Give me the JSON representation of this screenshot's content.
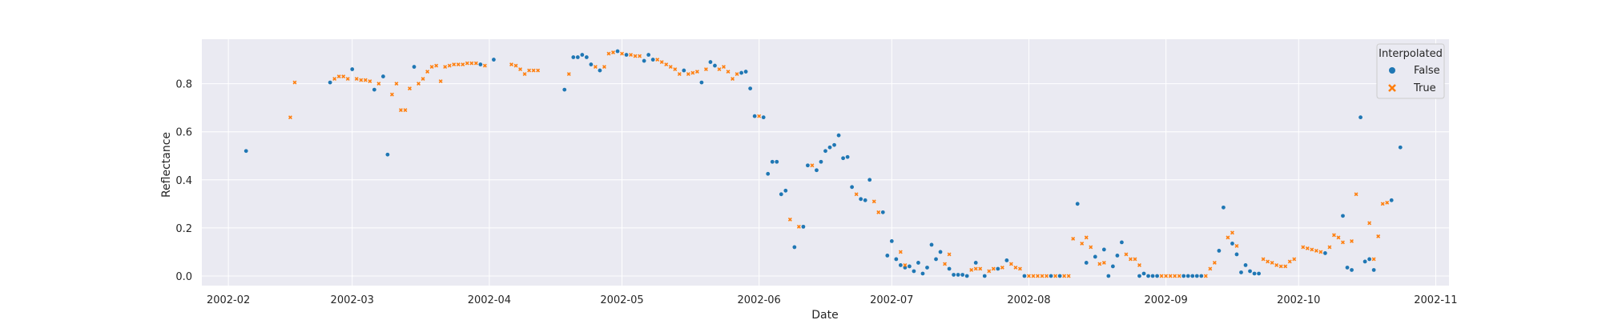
{
  "chart_data": {
    "type": "scatter",
    "title": "",
    "xlabel": "Date",
    "ylabel": "Reflectance",
    "xlim": [
      -6,
      276
    ],
    "ylim": [
      -0.04,
      0.985
    ],
    "x_ticks": [
      {
        "day": 0,
        "label": "2002-02"
      },
      {
        "day": 28,
        "label": "2002-03"
      },
      {
        "day": 59,
        "label": "2002-04"
      },
      {
        "day": 89,
        "label": "2002-05"
      },
      {
        "day": 120,
        "label": "2002-06"
      },
      {
        "day": 150,
        "label": "2002-07"
      },
      {
        "day": 181,
        "label": "2002-08"
      },
      {
        "day": 212,
        "label": "2002-09"
      },
      {
        "day": 242,
        "label": "2002-10"
      },
      {
        "day": 273,
        "label": "2002-11"
      }
    ],
    "y_ticks": [
      {
        "value": 0.0,
        "label": "0.0"
      },
      {
        "value": 0.2,
        "label": "0.2"
      },
      {
        "value": 0.4,
        "label": "0.4"
      },
      {
        "value": 0.6,
        "label": "0.6"
      },
      {
        "value": 0.8,
        "label": "0.8"
      }
    ],
    "legend": {
      "title": "Interpolated",
      "position": "upper-right",
      "entries": [
        {
          "label": "False",
          "marker": "circle",
          "color": "#1f77b4"
        },
        {
          "label": "True",
          "marker": "x",
          "color": "#ff7f0e"
        }
      ]
    },
    "x_unit": "days since 2002-02-01",
    "series": [
      {
        "name": "False",
        "color": "#1f77b4",
        "marker": "circle",
        "points": [
          [
            4,
            0.52
          ],
          [
            23,
            0.805
          ],
          [
            28,
            0.86
          ],
          [
            33,
            0.775
          ],
          [
            35,
            0.83
          ],
          [
            36,
            0.505
          ],
          [
            42,
            0.87
          ],
          [
            57,
            0.88
          ],
          [
            60,
            0.9
          ],
          [
            76,
            0.775
          ],
          [
            78,
            0.91
          ],
          [
            79,
            0.91
          ],
          [
            80,
            0.92
          ],
          [
            81,
            0.91
          ],
          [
            82,
            0.88
          ],
          [
            84,
            0.855
          ],
          [
            88,
            0.935
          ],
          [
            90,
            0.92
          ],
          [
            94,
            0.895
          ],
          [
            95,
            0.92
          ],
          [
            96,
            0.9
          ],
          [
            103,
            0.855
          ],
          [
            107,
            0.805
          ],
          [
            109,
            0.89
          ],
          [
            110,
            0.875
          ],
          [
            116,
            0.845
          ],
          [
            117,
            0.85
          ],
          [
            118,
            0.78
          ],
          [
            119,
            0.665
          ],
          [
            121,
            0.66
          ],
          [
            122,
            0.425
          ],
          [
            123,
            0.475
          ],
          [
            124,
            0.475
          ],
          [
            125,
            0.34
          ],
          [
            126,
            0.355
          ],
          [
            128,
            0.12
          ],
          [
            130,
            0.205
          ],
          [
            131,
            0.46
          ],
          [
            133,
            0.44
          ],
          [
            134,
            0.475
          ],
          [
            135,
            0.52
          ],
          [
            136,
            0.535
          ],
          [
            137,
            0.545
          ],
          [
            138,
            0.585
          ],
          [
            139,
            0.49
          ],
          [
            140,
            0.495
          ],
          [
            141,
            0.37
          ],
          [
            143,
            0.32
          ],
          [
            144,
            0.315
          ],
          [
            145,
            0.4
          ],
          [
            148,
            0.265
          ],
          [
            149,
            0.085
          ],
          [
            150,
            0.145
          ],
          [
            151,
            0.07
          ],
          [
            152,
            0.045
          ],
          [
            153,
            0.035
          ],
          [
            154,
            0.04
          ],
          [
            155,
            0.02
          ],
          [
            156,
            0.055
          ],
          [
            157,
            0.01
          ],
          [
            158,
            0.035
          ],
          [
            159,
            0.13
          ],
          [
            160,
            0.07
          ],
          [
            161,
            0.1
          ],
          [
            163,
            0.03
          ],
          [
            164,
            0.005
          ],
          [
            165,
            0.005
          ],
          [
            166,
            0.005
          ],
          [
            167,
            0.0
          ],
          [
            169,
            0.055
          ],
          [
            171,
            0.0
          ],
          [
            174,
            0.03
          ],
          [
            176,
            0.065
          ],
          [
            180,
            0.0
          ],
          [
            186,
            0.0
          ],
          [
            188,
            0.0
          ],
          [
            192,
            0.3
          ],
          [
            194,
            0.055
          ],
          [
            196,
            0.08
          ],
          [
            198,
            0.11
          ],
          [
            199,
            0.0
          ],
          [
            200,
            0.04
          ],
          [
            201,
            0.085
          ],
          [
            202,
            0.14
          ],
          [
            206,
            0.0
          ],
          [
            207,
            0.01
          ],
          [
            208,
            0.0
          ],
          [
            209,
            0.0
          ],
          [
            210,
            0.0
          ],
          [
            216,
            0.0
          ],
          [
            217,
            0.0
          ],
          [
            218,
            0.0
          ],
          [
            219,
            0.0
          ],
          [
            220,
            0.0
          ],
          [
            224,
            0.105
          ],
          [
            225,
            0.285
          ],
          [
            227,
            0.135
          ],
          [
            228,
            0.09
          ],
          [
            229,
            0.015
          ],
          [
            230,
            0.045
          ],
          [
            231,
            0.02
          ],
          [
            232,
            0.01
          ],
          [
            233,
            0.01
          ],
          [
            248,
            0.095
          ],
          [
            252,
            0.25
          ],
          [
            253,
            0.035
          ],
          [
            254,
            0.025
          ],
          [
            256,
            0.66
          ],
          [
            257,
            0.06
          ],
          [
            258,
            0.07
          ],
          [
            259,
            0.025
          ],
          [
            263,
            0.315
          ],
          [
            265,
            0.535
          ]
        ]
      },
      {
        "name": "True",
        "color": "#ff7f0e",
        "marker": "x",
        "points": [
          [
            14,
            0.66
          ],
          [
            15,
            0.805
          ],
          [
            24,
            0.82
          ],
          [
            25,
            0.83
          ],
          [
            26,
            0.83
          ],
          [
            27,
            0.82
          ],
          [
            29,
            0.82
          ],
          [
            30,
            0.815
          ],
          [
            31,
            0.815
          ],
          [
            32,
            0.81
          ],
          [
            34,
            0.8
          ],
          [
            37,
            0.755
          ],
          [
            38,
            0.8
          ],
          [
            39,
            0.69
          ],
          [
            40,
            0.69
          ],
          [
            41,
            0.78
          ],
          [
            43,
            0.8
          ],
          [
            44,
            0.82
          ],
          [
            45,
            0.85
          ],
          [
            46,
            0.87
          ],
          [
            47,
            0.875
          ],
          [
            48,
            0.81
          ],
          [
            49,
            0.87
          ],
          [
            50,
            0.875
          ],
          [
            51,
            0.88
          ],
          [
            52,
            0.88
          ],
          [
            53,
            0.88
          ],
          [
            54,
            0.885
          ],
          [
            55,
            0.885
          ],
          [
            56,
            0.885
          ],
          [
            58,
            0.875
          ],
          [
            64,
            0.88
          ],
          [
            65,
            0.875
          ],
          [
            66,
            0.86
          ],
          [
            67,
            0.84
          ],
          [
            68,
            0.855
          ],
          [
            69,
            0.855
          ],
          [
            70,
            0.855
          ],
          [
            77,
            0.84
          ],
          [
            83,
            0.87
          ],
          [
            85,
            0.87
          ],
          [
            86,
            0.925
          ],
          [
            87,
            0.93
          ],
          [
            89,
            0.925
          ],
          [
            91,
            0.92
          ],
          [
            92,
            0.915
          ],
          [
            93,
            0.915
          ],
          [
            97,
            0.9
          ],
          [
            98,
            0.89
          ],
          [
            99,
            0.88
          ],
          [
            100,
            0.87
          ],
          [
            101,
            0.86
          ],
          [
            102,
            0.84
          ],
          [
            104,
            0.84
          ],
          [
            105,
            0.845
          ],
          [
            106,
            0.85
          ],
          [
            108,
            0.86
          ],
          [
            111,
            0.86
          ],
          [
            112,
            0.87
          ],
          [
            113,
            0.85
          ],
          [
            114,
            0.82
          ],
          [
            115,
            0.84
          ],
          [
            120,
            0.665
          ],
          [
            127,
            0.235
          ],
          [
            129,
            0.205
          ],
          [
            132,
            0.46
          ],
          [
            142,
            0.34
          ],
          [
            146,
            0.31
          ],
          [
            147,
            0.265
          ],
          [
            152,
            0.1
          ],
          [
            153,
            0.045
          ],
          [
            162,
            0.05
          ],
          [
            163,
            0.09
          ],
          [
            168,
            0.025
          ],
          [
            169,
            0.03
          ],
          [
            170,
            0.03
          ],
          [
            172,
            0.02
          ],
          [
            173,
            0.03
          ],
          [
            175,
            0.035
          ],
          [
            177,
            0.05
          ],
          [
            178,
            0.035
          ],
          [
            179,
            0.03
          ],
          [
            181,
            0.0
          ],
          [
            182,
            0.0
          ],
          [
            183,
            0.0
          ],
          [
            184,
            0.0
          ],
          [
            185,
            0.0
          ],
          [
            187,
            0.0
          ],
          [
            189,
            0.0
          ],
          [
            190,
            0.0
          ],
          [
            191,
            0.155
          ],
          [
            193,
            0.135
          ],
          [
            194,
            0.16
          ],
          [
            195,
            0.12
          ],
          [
            197,
            0.05
          ],
          [
            198,
            0.055
          ],
          [
            203,
            0.09
          ],
          [
            204,
            0.07
          ],
          [
            205,
            0.07
          ],
          [
            206,
            0.045
          ],
          [
            211,
            0.0
          ],
          [
            212,
            0.0
          ],
          [
            213,
            0.0
          ],
          [
            214,
            0.0
          ],
          [
            215,
            0.0
          ],
          [
            221,
            0.0
          ],
          [
            222,
            0.03
          ],
          [
            223,
            0.055
          ],
          [
            226,
            0.16
          ],
          [
            227,
            0.18
          ],
          [
            228,
            0.125
          ],
          [
            234,
            0.07
          ],
          [
            235,
            0.06
          ],
          [
            236,
            0.055
          ],
          [
            237,
            0.045
          ],
          [
            238,
            0.04
          ],
          [
            239,
            0.04
          ],
          [
            240,
            0.06
          ],
          [
            241,
            0.07
          ],
          [
            243,
            0.12
          ],
          [
            244,
            0.115
          ],
          [
            245,
            0.11
          ],
          [
            246,
            0.105
          ],
          [
            247,
            0.1
          ],
          [
            249,
            0.12
          ],
          [
            250,
            0.17
          ],
          [
            251,
            0.16
          ],
          [
            252,
            0.14
          ],
          [
            254,
            0.145
          ],
          [
            255,
            0.34
          ],
          [
            258,
            0.22
          ],
          [
            259,
            0.07
          ],
          [
            260,
            0.165
          ],
          [
            261,
            0.3
          ],
          [
            262,
            0.305
          ]
        ]
      }
    ]
  }
}
